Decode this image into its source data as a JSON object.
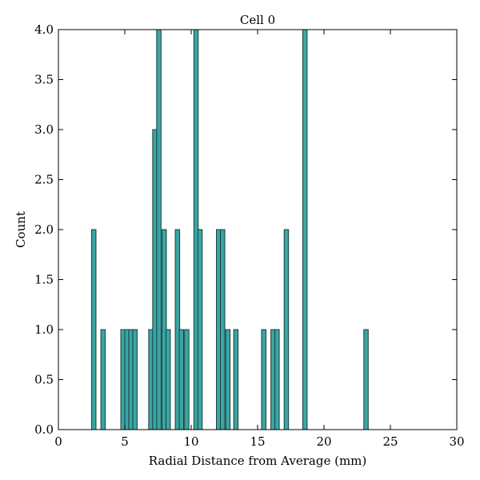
{
  "chart_data": {
    "type": "bar",
    "title": "Cell 0",
    "xlabel": "Radial Distance from Average (mm)",
    "ylabel": "Count",
    "xlim": [
      0,
      30
    ],
    "ylim": [
      0,
      4
    ],
    "xticks": [
      "0",
      "5",
      "10",
      "15",
      "20",
      "25",
      "30"
    ],
    "yticks": [
      "0.0",
      "0.5",
      "1.0",
      "1.5",
      "2.0",
      "2.5",
      "3.0",
      "3.5",
      "4.0"
    ],
    "bin_width": 0.33,
    "grid": false,
    "bar_color": "#3aa6a3",
    "edge_color": "#1a3d3c",
    "bins": [
      {
        "x": 2.5,
        "count": 2
      },
      {
        "x": 3.2,
        "count": 1
      },
      {
        "x": 4.7,
        "count": 1
      },
      {
        "x": 5.0,
        "count": 1
      },
      {
        "x": 5.3,
        "count": 1
      },
      {
        "x": 5.6,
        "count": 1
      },
      {
        "x": 6.8,
        "count": 1
      },
      {
        "x": 7.1,
        "count": 3
      },
      {
        "x": 7.4,
        "count": 4
      },
      {
        "x": 7.8,
        "count": 2
      },
      {
        "x": 8.1,
        "count": 1
      },
      {
        "x": 8.8,
        "count": 2
      },
      {
        "x": 9.1,
        "count": 1
      },
      {
        "x": 9.5,
        "count": 1
      },
      {
        "x": 10.2,
        "count": 4
      },
      {
        "x": 10.5,
        "count": 2
      },
      {
        "x": 11.9,
        "count": 2
      },
      {
        "x": 12.2,
        "count": 2
      },
      {
        "x": 12.6,
        "count": 1
      },
      {
        "x": 13.2,
        "count": 1
      },
      {
        "x": 15.3,
        "count": 1
      },
      {
        "x": 16.0,
        "count": 1
      },
      {
        "x": 16.3,
        "count": 1
      },
      {
        "x": 17.0,
        "count": 2
      },
      {
        "x": 18.4,
        "count": 4
      },
      {
        "x": 23.0,
        "count": 1
      }
    ]
  }
}
